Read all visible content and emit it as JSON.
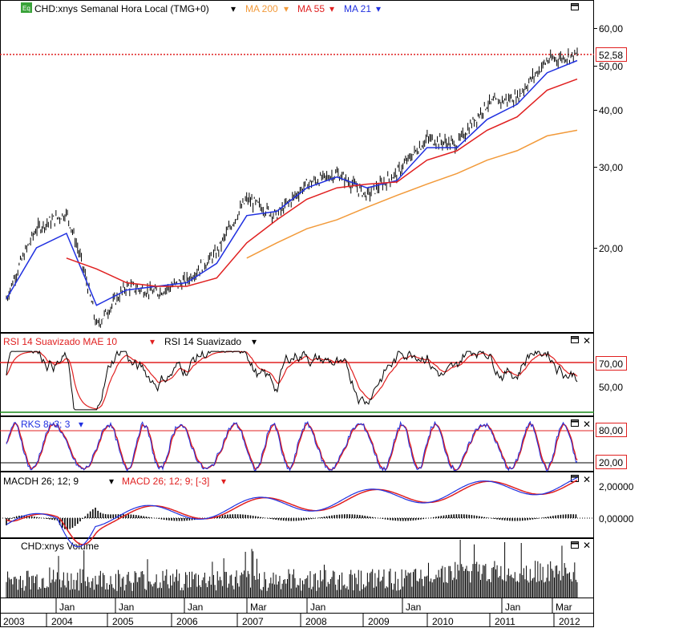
{
  "header": {
    "badge": "Eq",
    "title": "CHD:xnys Semanal Hora Local (TMG+0)",
    "ma200": "MA 200",
    "ma55": "MA 55",
    "ma21": "MA 21"
  },
  "rsi_header": {
    "a": "RSI 14 Suavizado MAE 10",
    "b": "RSI 14 Suavizado"
  },
  "rks_header": "RKS 8; 3; 3",
  "macd_header": {
    "a": "MACDH 26; 12; 9",
    "b": "MACD 26; 12; 9; [-3]"
  },
  "volume_header": "CHD:xnys Volume",
  "price_tag": "52,58",
  "rsi_levels": {
    "high": "70,00",
    "mid": "50,00"
  },
  "rks_levels": {
    "high": "80,00",
    "low": "20,00"
  },
  "macd_levels": {
    "a": "2,00000",
    "b": "0,00000"
  },
  "price_axis": [
    "60,00",
    "50,00",
    "40,00",
    "30,00",
    "20,00"
  ],
  "month_labels": [
    "Jan",
    "Jan",
    "Jan",
    "Mar",
    "Jan",
    "Jan",
    "Jan",
    "Mar"
  ],
  "year_labels": [
    "2003",
    "2004",
    "2005",
    "2006",
    "2007",
    "2008",
    "2009",
    "2010",
    "2011",
    "2012"
  ],
  "colors": {
    "ma200": "#f29a3a",
    "ma55": "#e02020",
    "ma21": "#2030e0",
    "price": "#000000",
    "rsi_line": "#e02020"
  },
  "chart_data": {
    "type": "line",
    "title": "CHD:xnys Semanal Hora Local (TMG+0)",
    "x": [
      "2003-09",
      "2004-01",
      "2004-03",
      "2004-06",
      "2005-01",
      "2005-06",
      "2006-01",
      "2006-06",
      "2007-01",
      "2007-06",
      "2008-01",
      "2008-06",
      "2009-01",
      "2009-06",
      "2010-01",
      "2010-06",
      "2011-01",
      "2011-06",
      "2012-01",
      "2012-03"
    ],
    "series": [
      {
        "name": "CHD:xnys",
        "values": [
          15.5,
          22.0,
          23.8,
          13.5,
          16.5,
          16.0,
          17.0,
          19.5,
          25.5,
          23.5,
          27.5,
          29.0,
          26.0,
          29.0,
          34.5,
          33.5,
          41.0,
          42.5,
          51.0,
          52.58
        ]
      },
      {
        "name": "MA 21",
        "values": [
          15.5,
          20.0,
          21.5,
          15.0,
          16.2,
          16.5,
          16.8,
          18.5,
          23.5,
          24.0,
          27.0,
          28.5,
          27.0,
          28.0,
          33.0,
          33.0,
          38.0,
          41.0,
          48.0,
          51.0
        ]
      },
      {
        "name": "MA 55",
        "values": [
          null,
          null,
          19.0,
          18.0,
          16.8,
          16.5,
          16.5,
          17.2,
          20.5,
          23.0,
          25.5,
          27.0,
          27.5,
          27.8,
          31.0,
          32.5,
          36.0,
          38.5,
          44.0,
          46.5
        ]
      },
      {
        "name": "MA 200",
        "values": [
          null,
          null,
          null,
          null,
          null,
          null,
          null,
          null,
          19.0,
          20.5,
          22.0,
          23.0,
          24.5,
          26.0,
          27.5,
          29.0,
          31.0,
          32.5,
          35.0,
          36.0
        ]
      }
    ],
    "ylim": [
      12,
      64
    ],
    "yscale": "log",
    "last_value": 52.58
  }
}
